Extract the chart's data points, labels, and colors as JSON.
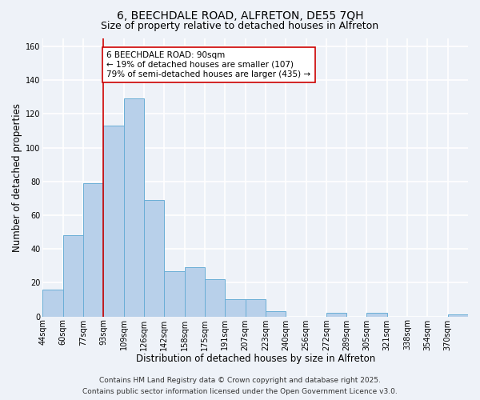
{
  "title": "6, BEECHDALE ROAD, ALFRETON, DE55 7QH",
  "subtitle": "Size of property relative to detached houses in Alfreton",
  "xlabel": "Distribution of detached houses by size in Alfreton",
  "ylabel": "Number of detached properties",
  "bar_values": [
    16,
    48,
    79,
    113,
    129,
    69,
    27,
    29,
    22,
    10,
    10,
    3,
    0,
    0,
    2,
    0,
    2,
    0,
    0,
    0,
    1
  ],
  "tick_labels": [
    "44sqm",
    "60sqm",
    "77sqm",
    "93sqm",
    "109sqm",
    "126sqm",
    "142sqm",
    "158sqm",
    "175sqm",
    "191sqm",
    "207sqm",
    "223sqm",
    "240sqm",
    "256sqm",
    "272sqm",
    "289sqm",
    "305sqm",
    "321sqm",
    "338sqm",
    "354sqm",
    "370sqm"
  ],
  "bar_color": "#b8d0ea",
  "bar_edge_color": "#6aaed6",
  "vline_color": "#cc0000",
  "vline_pos": 3,
  "annotation_text": "6 BEECHDALE ROAD: 90sqm\n← 19% of detached houses are smaller (107)\n79% of semi-detached houses are larger (435) →",
  "annotation_box_facecolor": "#ffffff",
  "annotation_box_edgecolor": "#cc0000",
  "ylim": [
    0,
    165
  ],
  "yticks": [
    0,
    20,
    40,
    60,
    80,
    100,
    120,
    140,
    160
  ],
  "background_color": "#eef2f8",
  "grid_color": "#ffffff",
  "title_fontsize": 10,
  "subtitle_fontsize": 9,
  "tick_label_fontsize": 7,
  "axis_label_fontsize": 8.5,
  "annotation_fontsize": 7.5,
  "footer_fontsize": 6.5,
  "footer_line1": "Contains HM Land Registry data © Crown copyright and database right 2025.",
  "footer_line2": "Contains public sector information licensed under the Open Government Licence v3.0."
}
